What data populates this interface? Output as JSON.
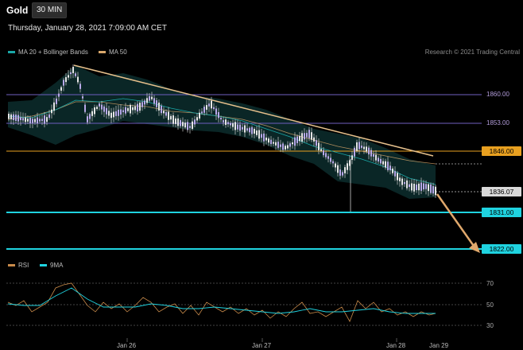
{
  "header": {
    "symbol": "Gold",
    "timeframe": "30 MIN",
    "timestamp": "Thursday, January 28, 2021 7:09:00 AM CET"
  },
  "legend_main": [
    {
      "name": "MA 20 + Bollinger Bands",
      "color": "#1aa7a7"
    },
    {
      "name": "MA 50",
      "color": "#d9a86c"
    }
  ],
  "credit": "Research © 2021 Trading Central",
  "levels": {
    "r1": {
      "label": "1860.00",
      "color": "#8a78d8"
    },
    "r2": {
      "label": "1853.00",
      "color": "#8a78d8"
    },
    "orange": {
      "label": "1846.00",
      "color": "#e8a020"
    },
    "last": {
      "label": "1836.07",
      "color": "#d9d9d9"
    },
    "s1": {
      "label": "1831.00",
      "color": "#1fd3e0"
    },
    "s2": {
      "label": "1822.00",
      "color": "#1fd3e0"
    }
  },
  "legend_rsi": [
    {
      "name": "RSI",
      "color": "#d9a86c"
    },
    {
      "name": "9MA",
      "color": "#1fd3e0"
    }
  ],
  "rsi_axis": {
    "ticks": [
      "70",
      "50",
      "30"
    ]
  },
  "x_axis": {
    "ticks": [
      "Jan 26",
      "Jan 27",
      "Jan 28",
      "Jan 29"
    ]
  }
}
